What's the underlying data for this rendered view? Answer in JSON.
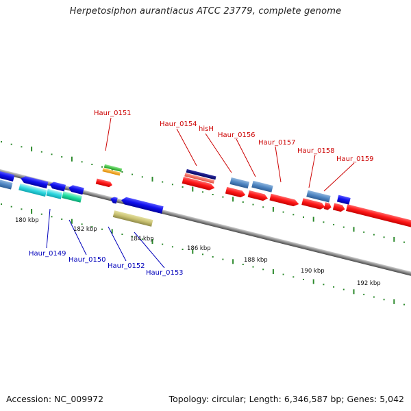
{
  "title": "Herpetosiphon aurantiacus ATCC 23779, complete genome",
  "footer": {
    "accession": "Accession: NC_009972",
    "topology": "Topology: circular; Length: 6,346,587 bp; Genes: 5,042"
  },
  "colors": {
    "backbone": "#8c8c8c",
    "forward_label": "#cc0000",
    "reverse_label": "#0000bb",
    "tick": "#2d8a2d"
  },
  "scale_labels": [
    "180 kbp",
    "182 kbp",
    "184 kbp",
    "186 kbp",
    "188 kbp",
    "190 kbp",
    "192 kbp"
  ],
  "forward_labels": [
    "Haur_0151",
    "Haur_0154",
    "hisH",
    "Haur_0156",
    "Haur_0157",
    "Haur_0158",
    "Haur_0159"
  ],
  "reverse_labels": [
    "Haur_0149",
    "Haur_0150",
    "Haur_0152",
    "Haur_0153"
  ]
}
